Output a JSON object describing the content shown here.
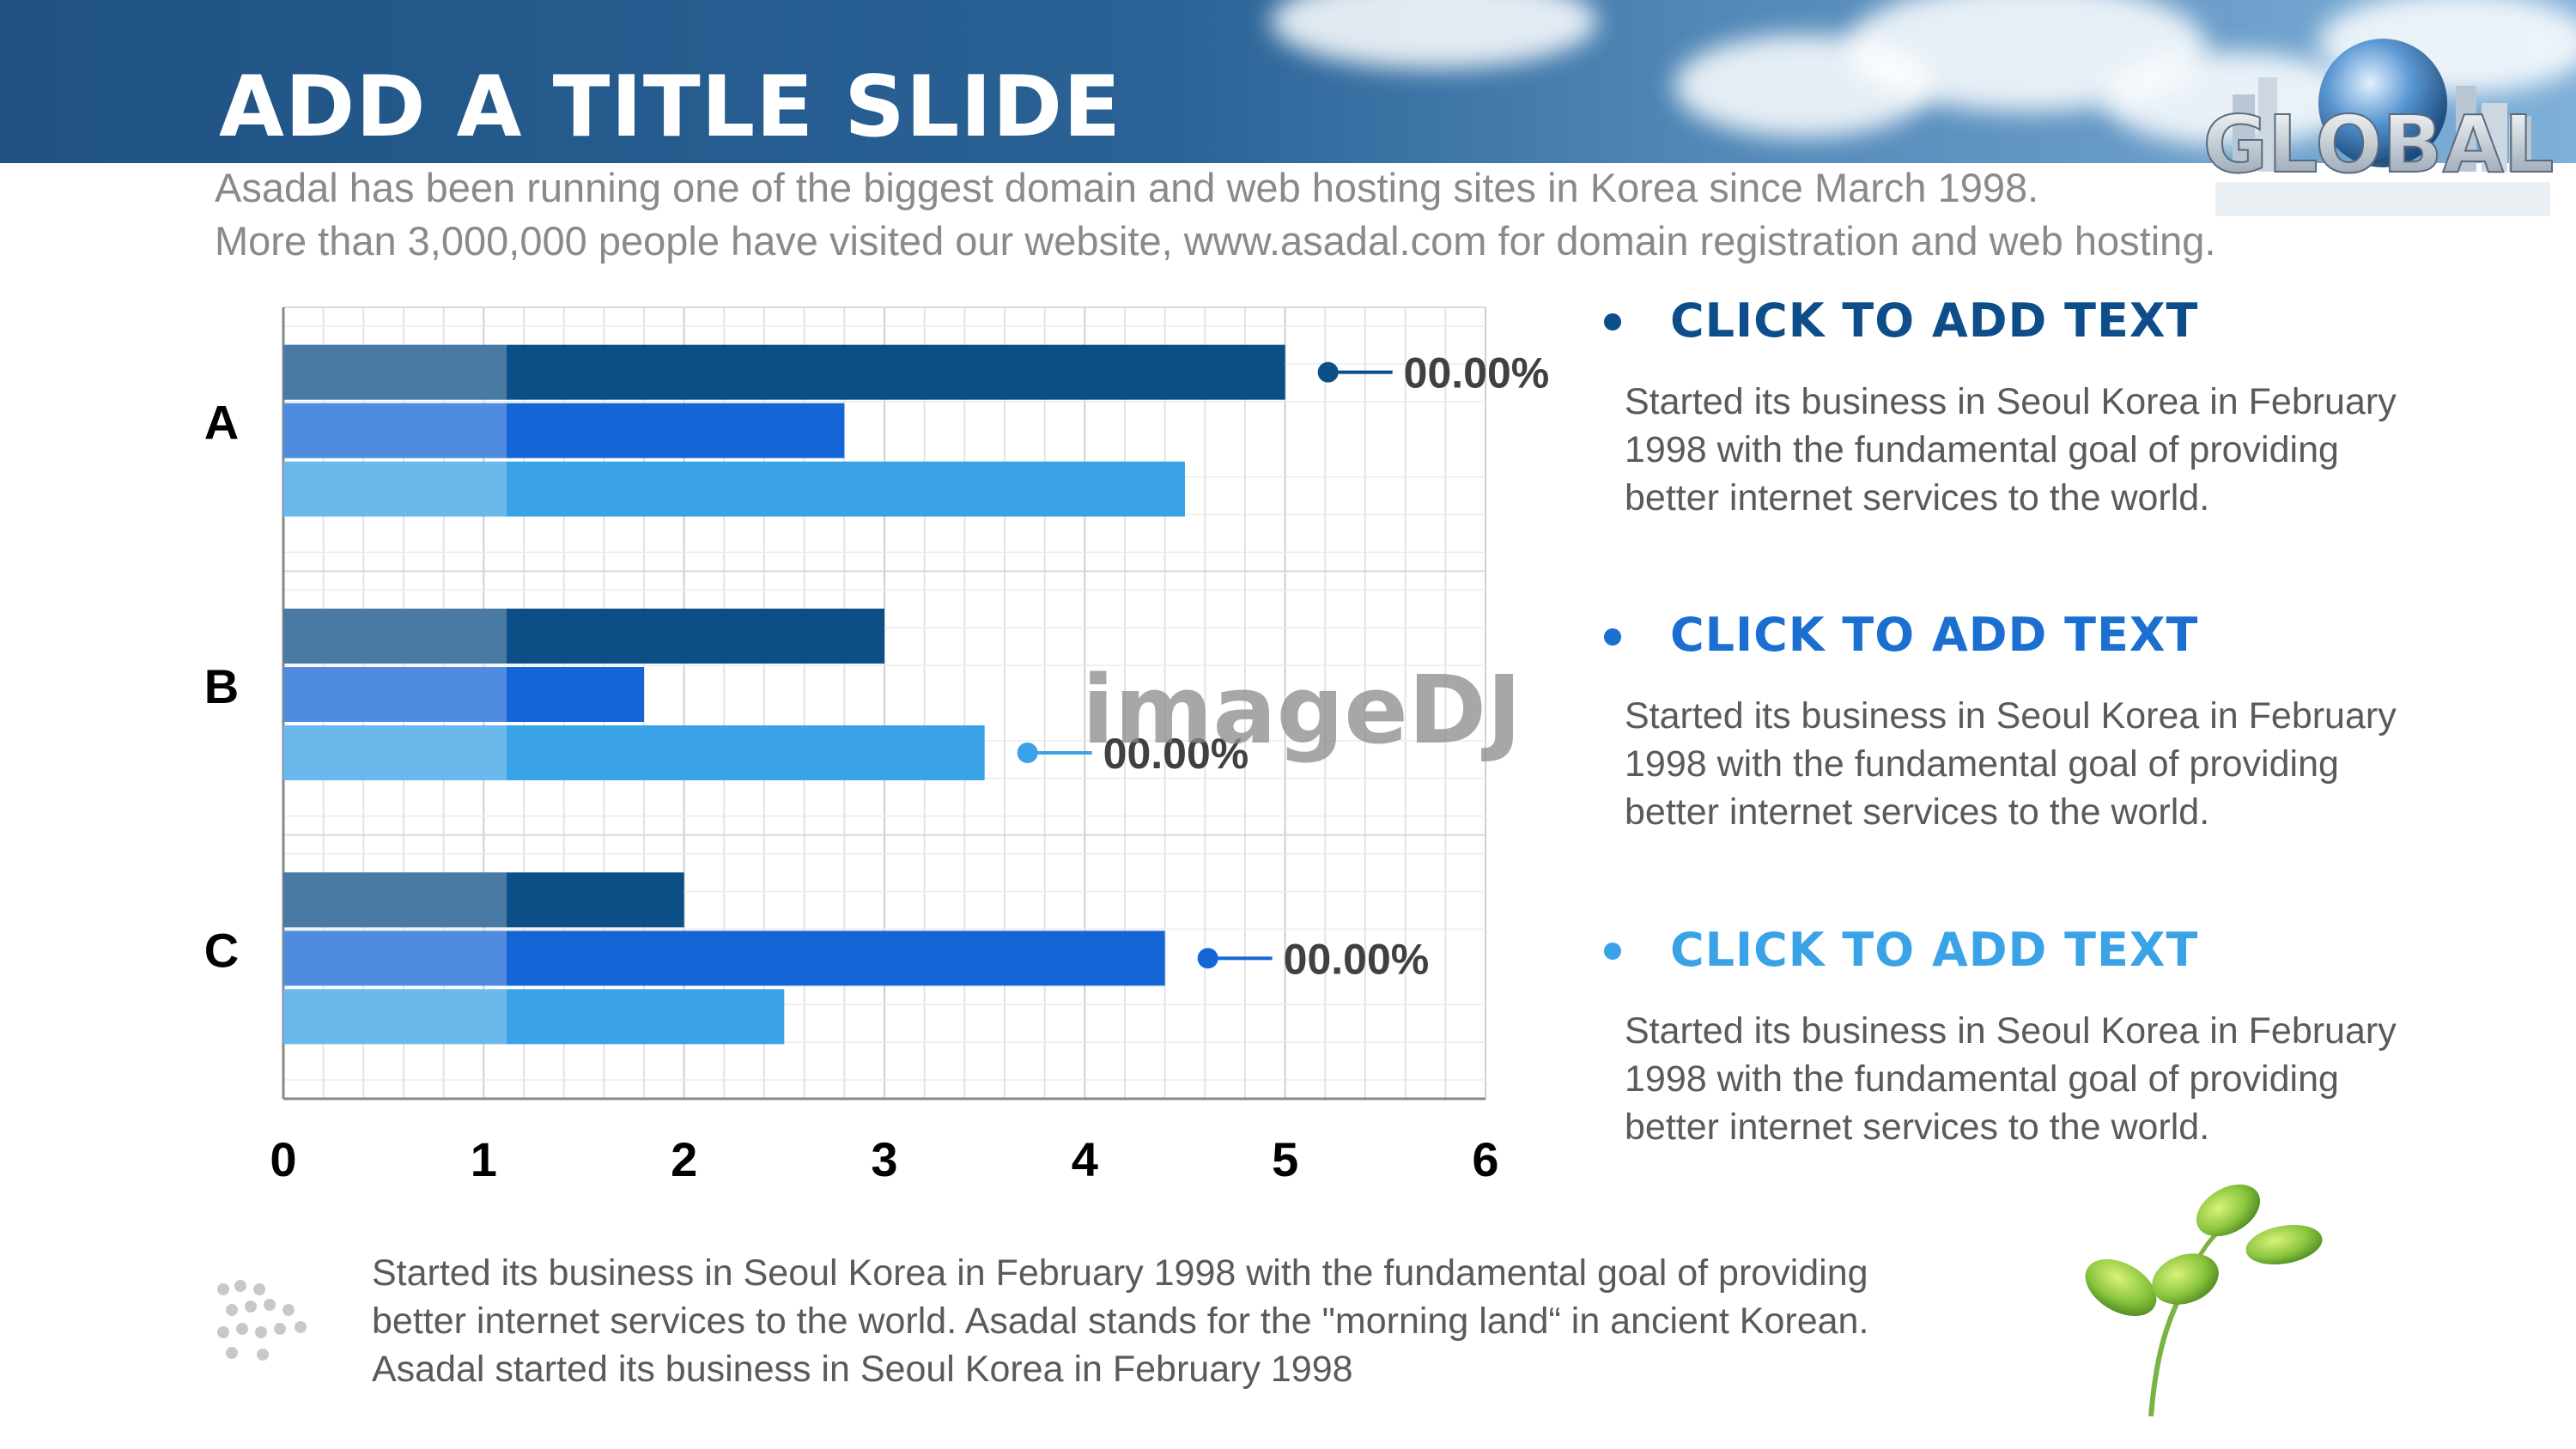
{
  "title": "ADD A TITLE SLIDE",
  "logo_text": "GLOBAL",
  "watermark": "imageDJ",
  "subtitle": [
    "Asadal has been running one of the biggest domain and web hosting sites in Korea since March 1998.",
    "More than 3,000,000 people have visited our website,  www.asadal.com for domain registration and web hosting."
  ],
  "chart_data": {
    "type": "bar",
    "orientation": "horizontal",
    "categories": [
      "A",
      "B",
      "C"
    ],
    "series": [
      {
        "values": [
          5,
          3,
          2
        ],
        "color": "#0c4e86"
      },
      {
        "values": [
          2.8,
          1.8,
          4.4
        ],
        "color": "#1466d6"
      },
      {
        "values": [
          4.5,
          3.5,
          2.5
        ],
        "color": "#3aa2e6"
      }
    ],
    "xlim": [
      0,
      6
    ],
    "xticks": [
      "0",
      "1",
      "2",
      "3",
      "4",
      "5",
      "6"
    ],
    "grid": true,
    "annotations": [
      {
        "text": "00.00%",
        "category": "A",
        "series": 0,
        "color": "#0c4e86"
      },
      {
        "text": "00.00%",
        "category": "B",
        "series": 2,
        "color": "#3aa2e6"
      },
      {
        "text": "00.00%",
        "category": "C",
        "series": 1,
        "color": "#1466d6"
      }
    ]
  },
  "items": [
    {
      "heading": "CLICK TO ADD TEXT",
      "color": "#0d4e8a",
      "body": "Started its business in Seoul Korea  in February 1998 with the fundamental goal of providing better internet services to the world."
    },
    {
      "heading": "CLICK TO ADD TEXT",
      "color": "#1a6fd0",
      "body": "Started its business in Seoul Korea  in February 1998 with the fundamental goal of providing better internet services to the world."
    },
    {
      "heading": "CLICK TO ADD TEXT",
      "color": "#3aa2e6",
      "body": "Started its business in Seoul Korea  in February 1998 with the fundamental goal of providing better internet services to the world."
    }
  ],
  "footer": [
    "Started its business in Seoul Korea  in February 1998 with the fundamental goal of providing",
    "better internet services to the world. Asadal stands for the \"morning land“ in ancient Korean.",
    "Asadal started its business in Seoul Korea  in February 1998"
  ]
}
